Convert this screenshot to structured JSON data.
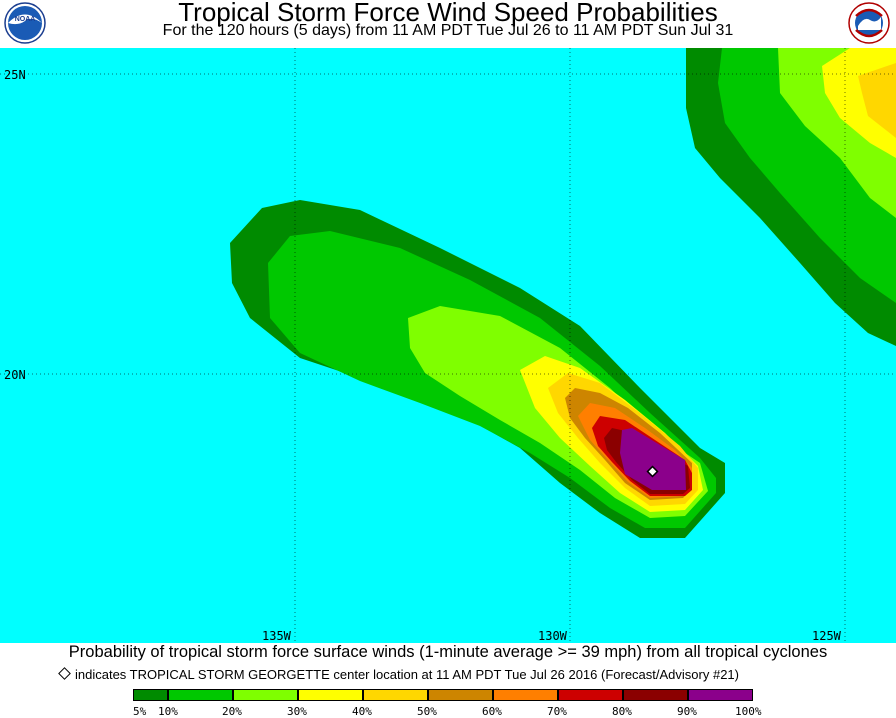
{
  "title": "Tropical Storm Force Wind Speed Probabilities",
  "subtitle": "For the 120 hours (5 days) from 11 AM PDT Tue Jul 26 to 11 AM PDT Sun Jul 31",
  "logos": {
    "left": "NOAA",
    "right_icon": "national-weather-service-logo"
  },
  "map": {
    "background_color": "#00ffff",
    "lat_labels": [
      "25N",
      "20N"
    ],
    "lon_labels": [
      "135W",
      "130W",
      "125W"
    ],
    "storm_marker": "diamond",
    "storm_name": "TROPICAL STORM GEORGETTE"
  },
  "caption": "Probability of tropical storm force surface winds (1-minute average >= 39 mph) from all tropical cyclones",
  "note": "indicates TROPICAL STORM GEORGETTE center location at 11 AM PDT Tue Jul 26 2016 (Forecast/Advisory #21)",
  "legend": {
    "labels": [
      "5%",
      "10%",
      "20%",
      "30%",
      "40%",
      "50%",
      "60%",
      "70%",
      "80%",
      "90%",
      "100%"
    ],
    "colors": [
      "#008b00",
      "#00c800",
      "#7fff00",
      "#ffff00",
      "#ffd700",
      "#cd8500",
      "#ff7f00",
      "#cd0000",
      "#8b0000",
      "#8b008b"
    ]
  }
}
